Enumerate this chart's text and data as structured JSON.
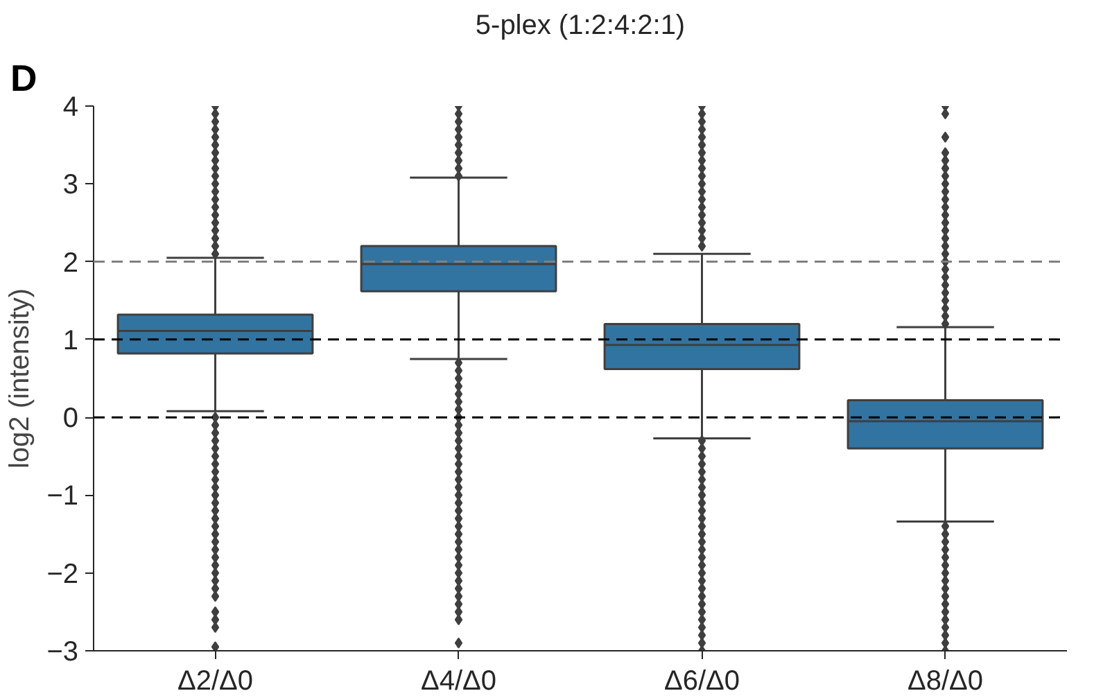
{
  "chart_data": {
    "type": "box",
    "title": "5-plex (1:2:4:2:1)",
    "ylabel": "log2 (intensity)",
    "annotations": [
      "D"
    ],
    "categories": [
      "Δ2/Δ0",
      "Δ4/Δ0",
      "Δ6/Δ0",
      "Δ8/Δ0"
    ],
    "color": "#3274a1",
    "marker": "diamond",
    "grid": false,
    "ylim": [
      -3,
      4
    ],
    "yticks": [
      {
        "value": -3,
        "label": "−3"
      },
      {
        "value": -2,
        "label": "−2"
      },
      {
        "value": -1,
        "label": "−1"
      },
      0,
      1,
      2,
      3,
      4
    ],
    "ref_lines": [
      {
        "axis": "y",
        "value": 2,
        "color": "#808080",
        "line_style": "dashed"
      },
      {
        "axis": "y",
        "value": 1,
        "color": "#000000",
        "line_style": "dashed"
      },
      {
        "axis": "y",
        "value": 0,
        "color": "#000000",
        "line_style": "dashed"
      }
    ],
    "boxes": [
      {
        "low": 0.08,
        "q1": 0.82,
        "median": 1.11,
        "q3": 1.32,
        "high": 2.05,
        "outliers": [
          2.1,
          2.2,
          2.3,
          2.4,
          2.5,
          2.6,
          2.7,
          2.8,
          2.9,
          3.0,
          3.1,
          3.2,
          3.3,
          3.4,
          3.5,
          3.6,
          3.7,
          3.8,
          3.9,
          4.0,
          0.0,
          -0.1,
          -0.2,
          -0.3,
          -0.4,
          -0.5,
          -0.6,
          -0.7,
          -0.8,
          -0.9,
          -1.0,
          -1.1,
          -1.2,
          -1.3,
          -1.4,
          -1.5,
          -1.6,
          -1.7,
          -1.8,
          -1.9,
          -2.0,
          -2.1,
          -2.2,
          -2.3,
          -2.5,
          -2.6,
          -2.7,
          -2.95
        ]
      },
      {
        "low": 0.75,
        "q1": 1.62,
        "median": 1.97,
        "q3": 2.2,
        "high": 3.08,
        "outliers": [
          3.1,
          3.2,
          3.3,
          3.4,
          3.5,
          3.6,
          3.7,
          3.8,
          3.9,
          4.0,
          0.7,
          0.6,
          0.5,
          0.4,
          0.3,
          0.2,
          0.1,
          0.0,
          -0.1,
          -0.2,
          -0.3,
          -0.4,
          -0.5,
          -0.6,
          -0.7,
          -0.8,
          -0.9,
          -1.0,
          -1.1,
          -1.2,
          -1.3,
          -1.4,
          -1.5,
          -1.6,
          -1.7,
          -1.8,
          -1.9,
          -2.0,
          -2.1,
          -2.2,
          -2.3,
          -2.4,
          -2.5,
          -2.6,
          -2.9
        ]
      },
      {
        "low": -0.27,
        "q1": 0.62,
        "median": 0.93,
        "q3": 1.2,
        "high": 2.1,
        "outliers": [
          2.2,
          2.3,
          2.4,
          2.5,
          2.6,
          2.7,
          2.8,
          2.9,
          3.0,
          3.1,
          3.2,
          3.3,
          3.4,
          3.5,
          3.6,
          3.7,
          3.8,
          3.9,
          4.0,
          -0.3,
          -0.4,
          -0.5,
          -0.6,
          -0.7,
          -0.8,
          -0.9,
          -1.0,
          -1.1,
          -1.2,
          -1.3,
          -1.4,
          -1.5,
          -1.6,
          -1.7,
          -1.8,
          -1.9,
          -2.0,
          -2.1,
          -2.2,
          -2.3,
          -2.4,
          -2.5,
          -2.6,
          -2.7,
          -2.8,
          -2.9,
          -3.0
        ]
      },
      {
        "low": -1.34,
        "q1": -0.4,
        "median": -0.05,
        "q3": 0.22,
        "high": 1.16,
        "outliers": [
          1.2,
          1.3,
          1.4,
          1.5,
          1.6,
          1.7,
          1.8,
          1.9,
          2.0,
          2.1,
          2.2,
          2.3,
          2.4,
          2.5,
          2.6,
          2.7,
          2.8,
          2.9,
          3.0,
          3.1,
          3.2,
          3.3,
          3.4,
          3.6,
          3.9,
          4.0,
          -1.4,
          -1.5,
          -1.6,
          -1.7,
          -1.8,
          -1.9,
          -2.0,
          -2.1,
          -2.2,
          -2.3,
          -2.4,
          -2.5,
          -2.6,
          -2.7,
          -2.8,
          -2.9,
          -3.0
        ]
      }
    ]
  }
}
